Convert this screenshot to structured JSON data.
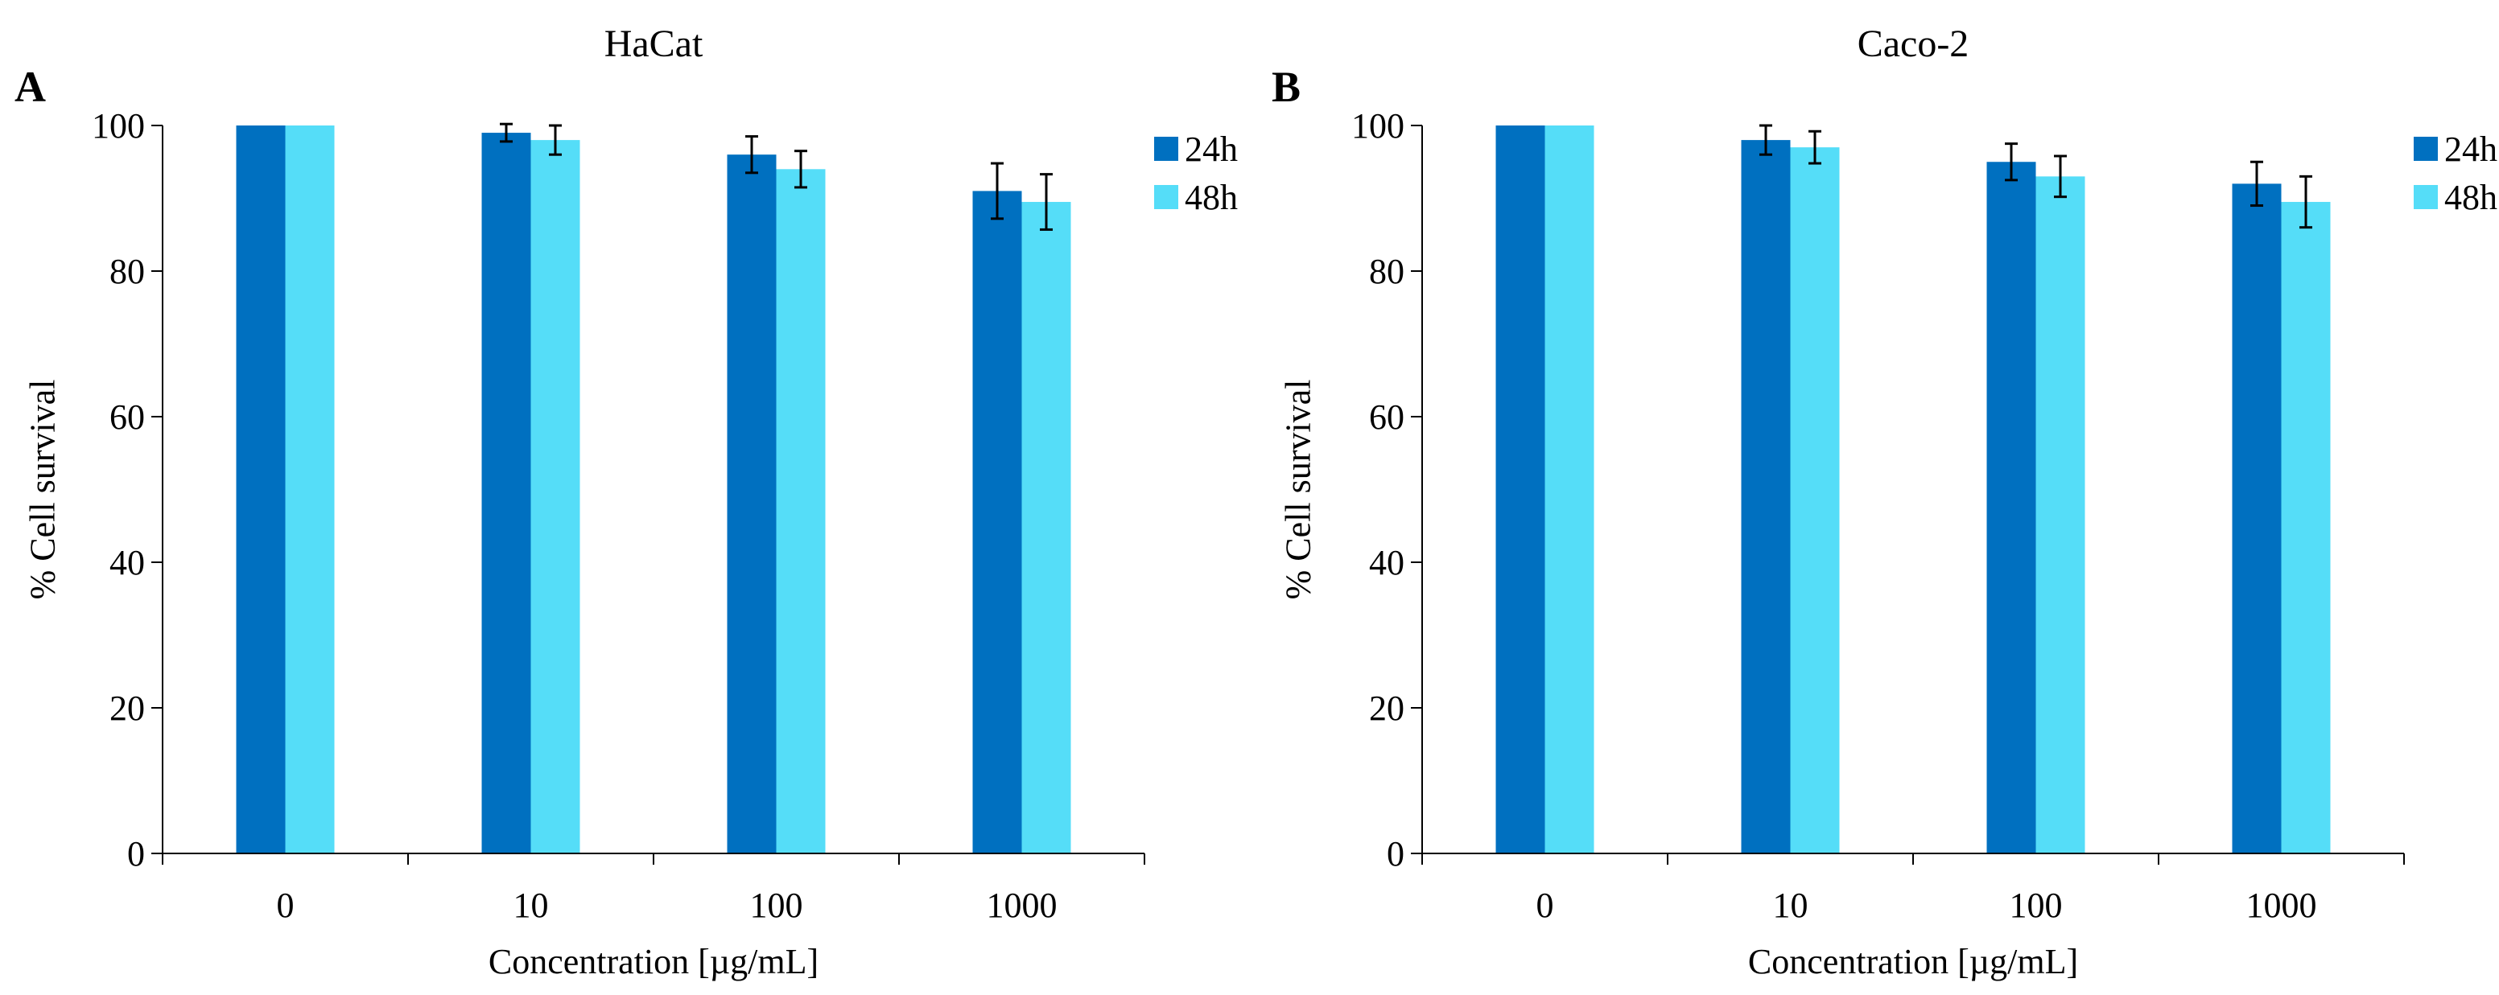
{
  "panels": [
    {
      "letter": "A"
    },
    {
      "letter": "B"
    }
  ],
  "chart_data": [
    {
      "type": "bar",
      "title": "HaCat",
      "xlabel": "Concentration [µg/mL]",
      "ylabel": "% Cell survival",
      "ylim": [
        0,
        100
      ],
      "yticks": [
        "0",
        "20",
        "40",
        "60",
        "80",
        "100"
      ],
      "categories": [
        "0",
        "10",
        "100",
        "1000"
      ],
      "legend_position": "top-right",
      "grid": false,
      "series": [
        {
          "name": "24h",
          "color": "#0070C0",
          "values": [
            100,
            99,
            96,
            91
          ],
          "errors": [
            0,
            1.2,
            2.5,
            3.8
          ]
        },
        {
          "name": "48h",
          "color": "#55DDF8",
          "values": [
            100,
            98,
            94,
            89.5
          ],
          "errors": [
            0,
            2.0,
            2.5,
            3.8
          ]
        }
      ]
    },
    {
      "type": "bar",
      "title": "Caco-2",
      "xlabel": "Concentration [µg/mL]",
      "ylabel": "% Cell survival",
      "ylim": [
        0,
        100
      ],
      "yticks": [
        "0",
        "20",
        "40",
        "60",
        "80",
        "100"
      ],
      "categories": [
        "0",
        "10",
        "100",
        "1000"
      ],
      "legend_position": "top-right",
      "grid": false,
      "series": [
        {
          "name": "24h",
          "color": "#0070C0",
          "values": [
            100,
            98,
            95,
            92
          ],
          "errors": [
            0,
            2.0,
            2.5,
            3.0
          ]
        },
        {
          "name": "48h",
          "color": "#55DDF8",
          "values": [
            100,
            97,
            93,
            89.5
          ],
          "errors": [
            0,
            2.2,
            2.8,
            3.5
          ]
        }
      ]
    }
  ]
}
